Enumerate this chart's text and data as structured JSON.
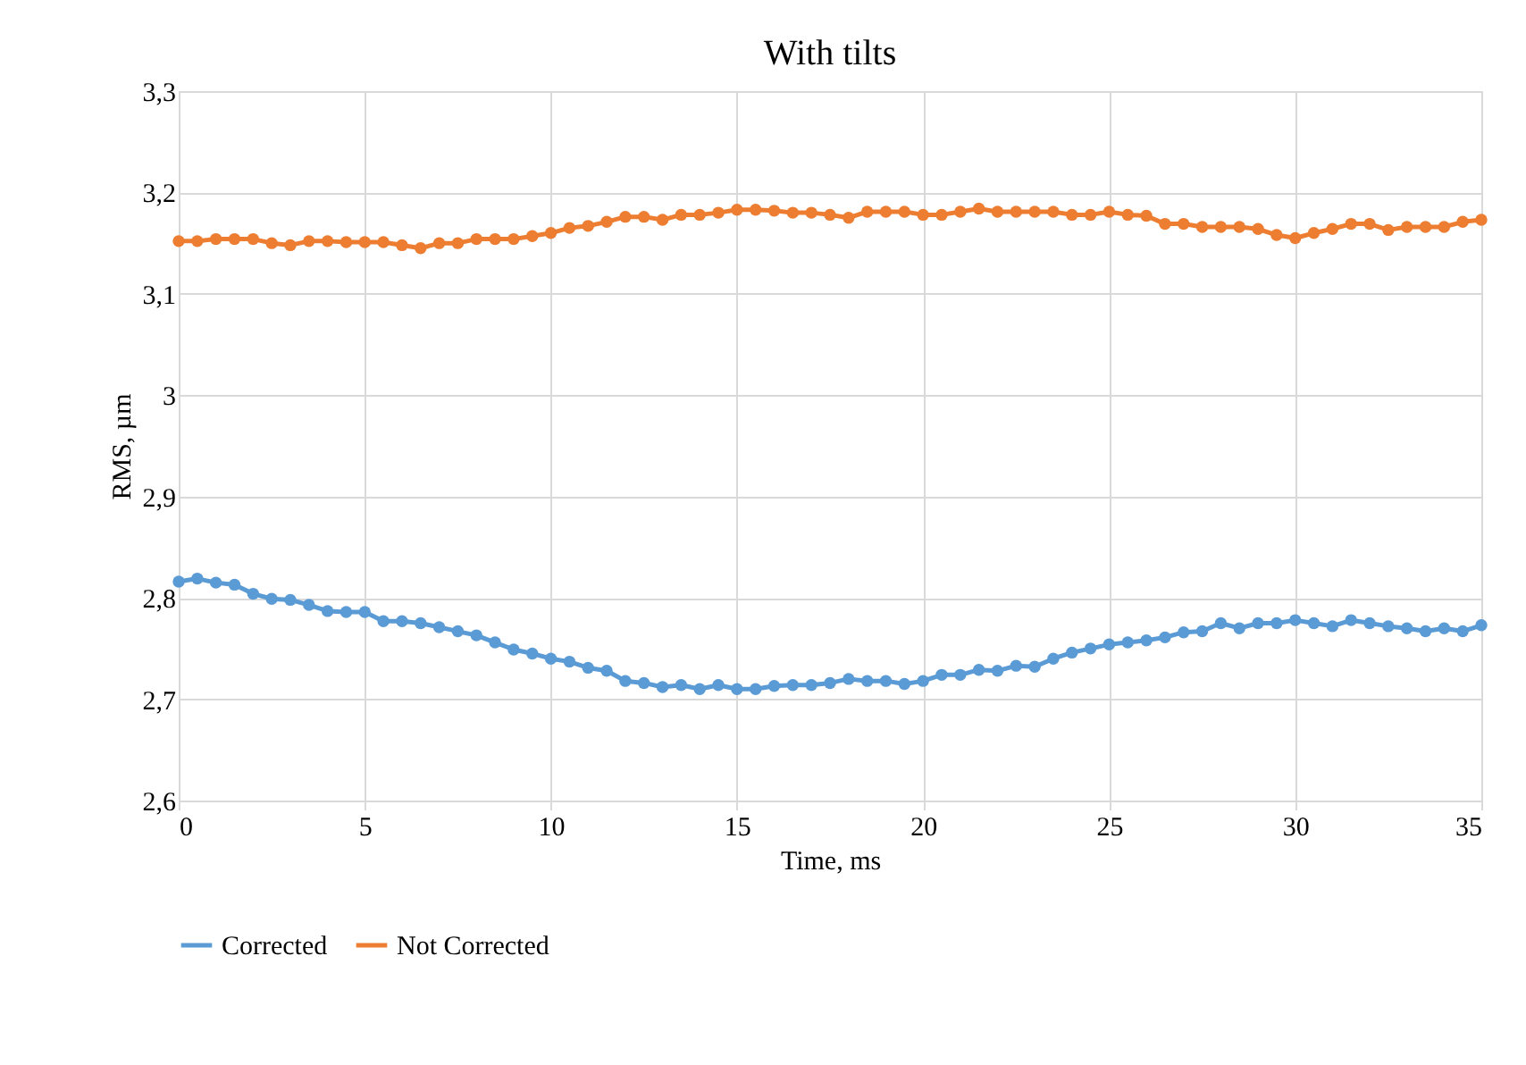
{
  "chart_data": {
    "type": "line",
    "title": "With tilts",
    "xlabel": "Time,  ms",
    "ylabel": "RMS, µm",
    "x": [
      0,
      0.5,
      1,
      1.5,
      2,
      2.5,
      3,
      3.5,
      4,
      4.5,
      5,
      5.5,
      6,
      6.5,
      7,
      7.5,
      8,
      8.5,
      9,
      9.5,
      10,
      10.5,
      11,
      11.5,
      12,
      12.5,
      13,
      13.5,
      14,
      14.5,
      15,
      15.5,
      16,
      16.5,
      17,
      17.5,
      18,
      18.5,
      19,
      19.5,
      20,
      20.5,
      21,
      21.5,
      22,
      22.5,
      23,
      23.5,
      24,
      24.5,
      25,
      25.5,
      26,
      26.5,
      27,
      27.5,
      28,
      28.5,
      29,
      29.5,
      30,
      30.5,
      31,
      31.5,
      32,
      32.5,
      33,
      33.5,
      34,
      34.5,
      35
    ],
    "series": [
      {
        "name": "Corrected",
        "color": "#5b9bd5",
        "values": [
          2.816,
          2.819,
          2.815,
          2.813,
          2.804,
          2.799,
          2.798,
          2.793,
          2.787,
          2.786,
          2.786,
          2.777,
          2.777,
          2.775,
          2.771,
          2.767,
          2.763,
          2.756,
          2.749,
          2.745,
          2.74,
          2.737,
          2.731,
          2.728,
          2.718,
          2.716,
          2.712,
          2.714,
          2.71,
          2.714,
          2.71,
          2.71,
          2.713,
          2.714,
          2.714,
          2.716,
          2.72,
          2.718,
          2.718,
          2.715,
          2.718,
          2.724,
          2.724,
          2.729,
          2.728,
          2.733,
          2.732,
          2.74,
          2.746,
          2.75,
          2.754,
          2.756,
          2.758,
          2.761,
          2.766,
          2.767,
          2.775,
          2.77,
          2.775,
          2.775,
          2.778,
          2.775,
          2.772,
          2.778,
          2.775,
          2.772,
          2.77,
          2.767,
          2.77,
          2.767,
          2.773
        ]
      },
      {
        "name": "Not Corrected",
        "color": "#ed7d31",
        "values": [
          3.152,
          3.152,
          3.154,
          3.154,
          3.154,
          3.15,
          3.148,
          3.152,
          3.152,
          3.151,
          3.151,
          3.151,
          3.148,
          3.145,
          3.15,
          3.15,
          3.154,
          3.154,
          3.154,
          3.157,
          3.16,
          3.165,
          3.167,
          3.171,
          3.176,
          3.176,
          3.173,
          3.178,
          3.178,
          3.18,
          3.183,
          3.183,
          3.182,
          3.18,
          3.18,
          3.178,
          3.175,
          3.181,
          3.181,
          3.181,
          3.178,
          3.178,
          3.181,
          3.184,
          3.181,
          3.181,
          3.181,
          3.181,
          3.178,
          3.178,
          3.181,
          3.178,
          3.177,
          3.169,
          3.169,
          3.166,
          3.166,
          3.166,
          3.164,
          3.158,
          3.155,
          3.16,
          3.164,
          3.169,
          3.169,
          3.163,
          3.166,
          3.166,
          3.166,
          3.171,
          3.173
        ]
      }
    ],
    "xlim": [
      0,
      35
    ],
    "xticks": [
      0,
      5,
      10,
      15,
      20,
      25,
      30,
      35
    ],
    "ylim": [
      2.6,
      3.3
    ],
    "yticks": [
      {
        "value": 2.6,
        "label": "2,6"
      },
      {
        "value": 2.7,
        "label": "2,7"
      },
      {
        "value": 2.8,
        "label": "2,8"
      },
      {
        "value": 2.9,
        "label": "2,9"
      },
      3,
      {
        "value": 3.1,
        "label": "3,1"
      },
      {
        "value": 3.2,
        "label": "3,2"
      },
      {
        "value": 3.3,
        "label": "3,3"
      }
    ],
    "grid": true,
    "legend": "bottom",
    "marker": "circle",
    "line_style": "solid"
  }
}
